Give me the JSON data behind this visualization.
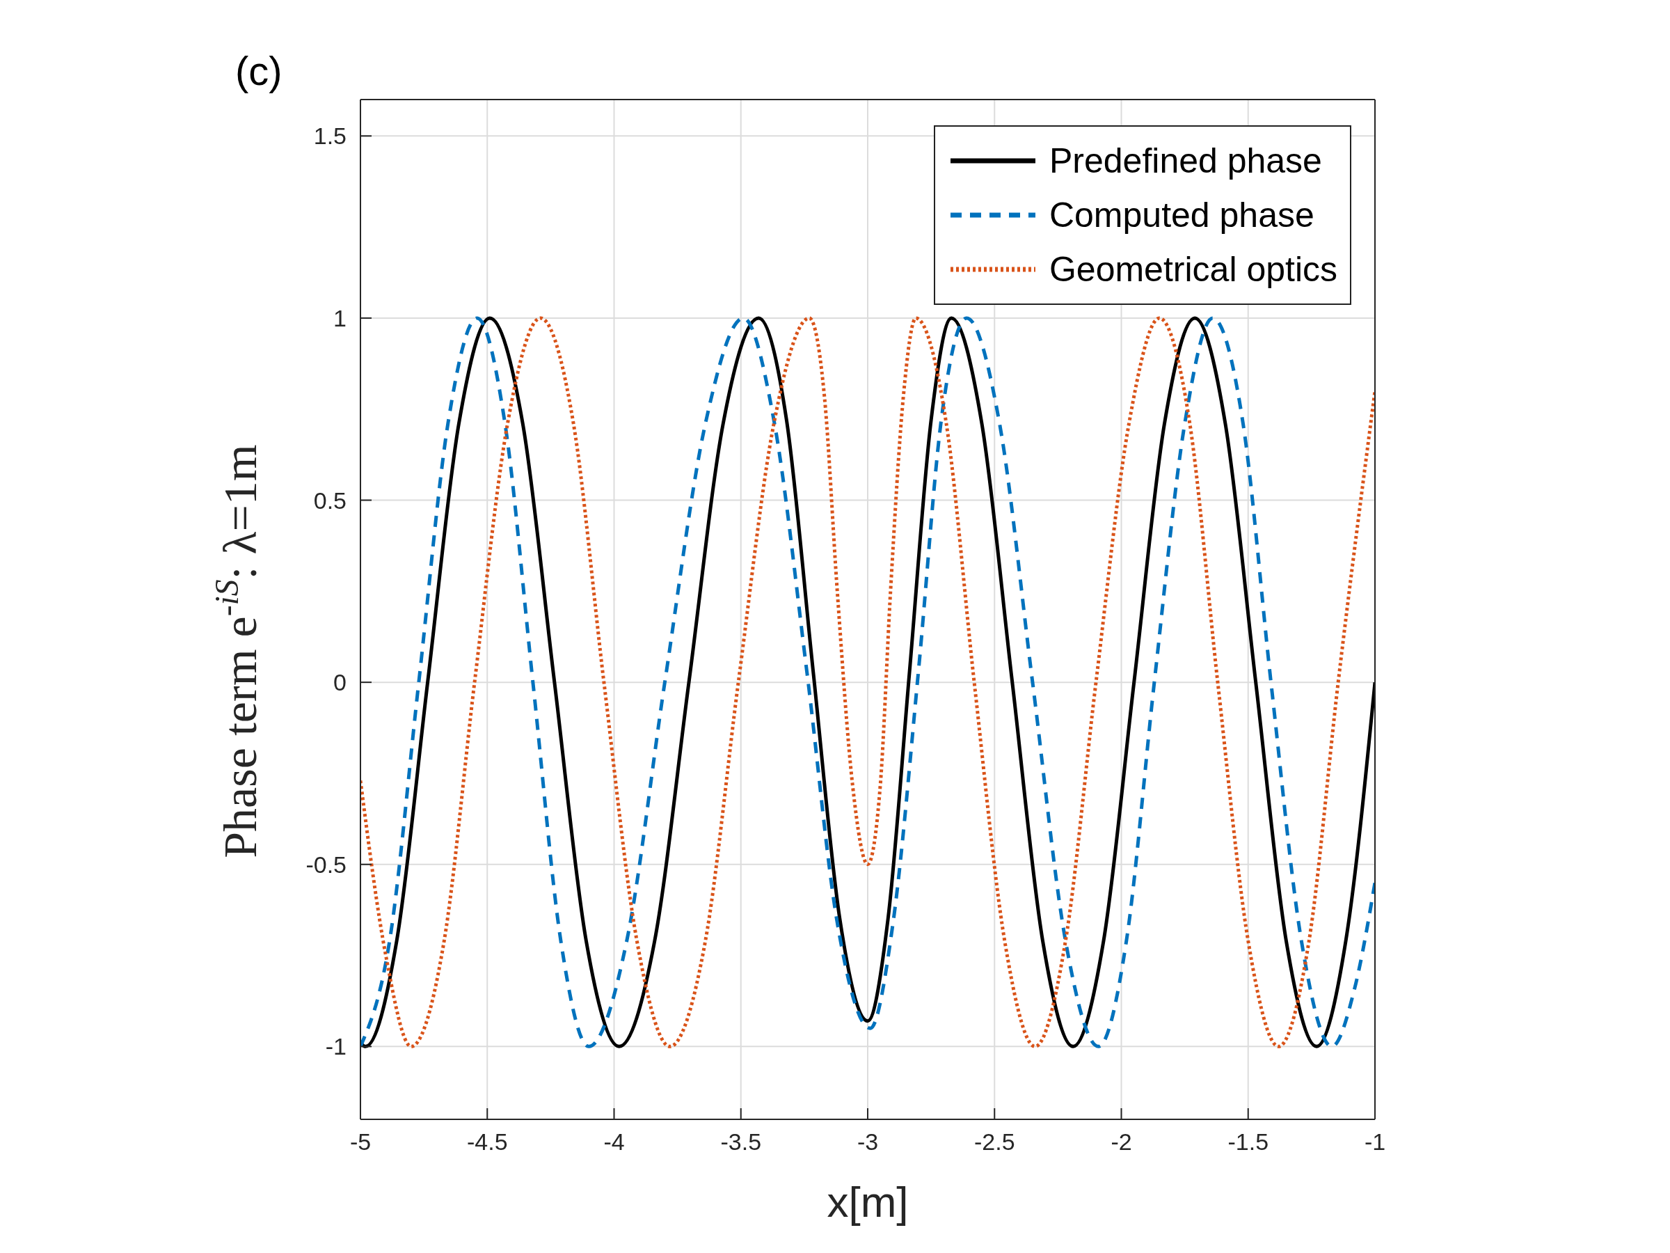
{
  "chart_data": {
    "type": "line",
    "title": "(c)",
    "xlabel": "x[m]",
    "ylabel": "Phase term e$^{-iS}$: λ=1m",
    "xlim": [
      -5,
      -1
    ],
    "xticks": [
      -5,
      -4.5,
      -4,
      -3.5,
      -3,
      -2.5,
      -2,
      -1.5,
      -1
    ],
    "ylim": [
      -1.2,
      1.6
    ],
    "yticks": [
      -1,
      -0.5,
      0,
      0.5,
      1,
      1.5
    ],
    "grid": true,
    "legend": "top right",
    "series": [
      {
        "name": "Predefined phase",
        "color": "#000000",
        "line_style": "solid",
        "x": [
          -5,
          -4.98,
          -4.857,
          -4.735,
          -4.612,
          -4.49,
          -4.36,
          -4.235,
          -4.11,
          -3.98,
          -3.84,
          -3.705,
          -3.57,
          -3.43,
          -3.32,
          -3.215,
          -3.11,
          -3.0,
          -2.92,
          -2.835,
          -2.75,
          -2.67,
          -2.55,
          -2.43,
          -2.31,
          -2.19,
          -2.07,
          -1.95,
          -1.83,
          -1.71,
          -1.59,
          -1.47,
          -1.35,
          -1.23,
          -1.115,
          -1
        ],
        "values": [
          -0.99,
          -1,
          -0.71,
          0,
          0.71,
          1,
          0.71,
          0,
          -0.71,
          -1,
          -0.71,
          0,
          0.71,
          1,
          0.72,
          0.03,
          -0.65,
          -0.93,
          -0.65,
          0.03,
          0.72,
          1,
          0.71,
          0,
          -0.71,
          -1,
          -0.71,
          0,
          0.71,
          1,
          0.71,
          0,
          -0.71,
          -1,
          -0.71,
          0
        ]
      },
      {
        "name": "Computed phase",
        "color": "#0072bd",
        "line_style": "dashed",
        "x": [
          -5,
          -4.885,
          -4.77,
          -4.655,
          -4.54,
          -4.43,
          -4.32,
          -4.21,
          -4.1,
          -3.95,
          -3.8,
          -3.64,
          -3.49,
          -3.37,
          -3.24,
          -3.12,
          -2.99,
          -2.9,
          -2.8,
          -2.71,
          -2.61,
          -2.48,
          -2.35,
          -2.22,
          -2.09,
          -1.98,
          -1.87,
          -1.75,
          -1.64,
          -1.52,
          -1.41,
          -1.29,
          -1.17,
          -1.08,
          -1
        ],
        "values": [
          -1,
          -0.71,
          0,
          0.71,
          1,
          0.71,
          0,
          -0.71,
          -1,
          -0.71,
          0,
          0.71,
          1,
          0.72,
          0.03,
          -0.66,
          -0.95,
          -0.66,
          0.03,
          0.72,
          1,
          0.71,
          0,
          -0.71,
          -1,
          -0.71,
          0,
          0.71,
          1,
          0.71,
          0,
          -0.71,
          -1,
          -0.84,
          -0.55
        ]
      },
      {
        "name": "Geometrical optics",
        "color": "#d95319",
        "line_style": "dotted",
        "x": [
          -5,
          -4.9,
          -4.8,
          -4.67,
          -4.55,
          -4.42,
          -4.29,
          -4.16,
          -4.04,
          -3.91,
          -3.78,
          -3.64,
          -3.51,
          -3.37,
          -3.23,
          -3.17,
          -3.12,
          -3.06,
          -3.0,
          -2.95,
          -2.91,
          -2.86,
          -2.81,
          -2.69,
          -2.58,
          -2.46,
          -2.34,
          -2.22,
          -2.1,
          -1.97,
          -1.85,
          -1.73,
          -1.62,
          -1.5,
          -1.38,
          -1.26,
          -1.145,
          -1
        ],
        "values": [
          -0.27,
          -0.75,
          -1,
          -0.71,
          0,
          0.71,
          1,
          0.71,
          0,
          -0.71,
          -1,
          -0.71,
          0,
          0.71,
          1,
          0.78,
          0.25,
          -0.28,
          -0.5,
          -0.28,
          0.25,
          0.78,
          1,
          0.71,
          0,
          -0.71,
          -1,
          -0.71,
          0,
          0.71,
          1,
          0.71,
          0,
          -0.71,
          -1,
          -0.71,
          0,
          0.8
        ]
      }
    ]
  }
}
